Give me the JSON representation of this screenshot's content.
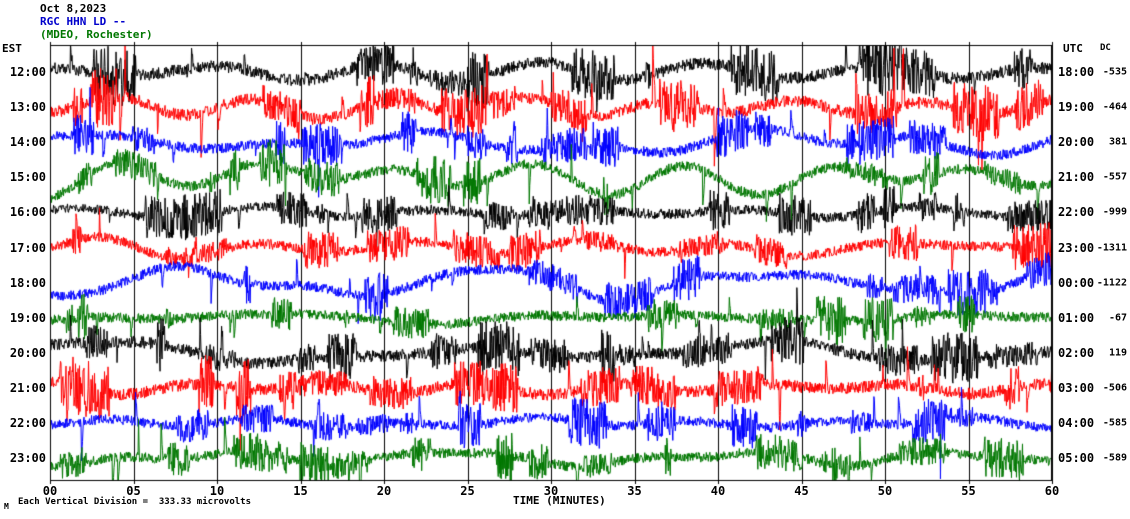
{
  "chart_data": {
    "type": "line",
    "subtype": "helicorder-seismogram",
    "title_lines": [
      "Oct 8,2023",
      "RGC HHN LD --",
      "(MDEO, Rochester)"
    ],
    "title_colors": [
      "#000000",
      "#0000cc",
      "#007700"
    ],
    "xlabel": "TIME (MINUTES)",
    "x_ticks": [
      "00",
      "05",
      "10",
      "15",
      "20",
      "25",
      "30",
      "35",
      "40",
      "45",
      "50",
      "55",
      "60"
    ],
    "x_range_minutes": [
      0,
      60
    ],
    "left_axis_label": "EST",
    "right_axis_label": "UTC",
    "dc_label": "DC",
    "footer": "Each Vertical Division =  333.33 microvolts",
    "corner_mark": "M",
    "grid": "vertical lines every 5 minutes",
    "legend_position": "none",
    "colors": {
      "black": "#000000",
      "red": "#ff0000",
      "blue": "#0000ff",
      "green": "#007700"
    },
    "rows": [
      {
        "est": "12:00",
        "utc": "18:00",
        "dc": "-535",
        "color": "black",
        "wander": 8,
        "noise": 6,
        "spikes": 20,
        "spike_amp": 30
      },
      {
        "est": "13:00",
        "utc": "19:00",
        "dc": "-464",
        "color": "red",
        "wander": 9,
        "noise": 6,
        "spikes": 24,
        "spike_amp": 55
      },
      {
        "est": "14:00",
        "utc": "20:00",
        "dc": "381",
        "color": "blue",
        "wander": 14,
        "noise": 5,
        "spikes": 14,
        "spike_amp": 35
      },
      {
        "est": "15:00",
        "utc": "21:00",
        "dc": "-557",
        "color": "green",
        "wander": 17,
        "noise": 5,
        "spikes": 12,
        "spike_amp": 40
      },
      {
        "est": "16:00",
        "utc": "22:00",
        "dc": "-999",
        "color": "black",
        "wander": 5,
        "noise": 5,
        "spikes": 12,
        "spike_amp": 25
      },
      {
        "est": "17:00",
        "utc": "23:00",
        "dc": "-1311",
        "color": "red",
        "wander": 11,
        "noise": 5,
        "spikes": 14,
        "spike_amp": 35
      },
      {
        "est": "18:00",
        "utc": "00:00",
        "dc": "-1122",
        "color": "blue",
        "wander": 15,
        "noise": 5,
        "spikes": 12,
        "spike_amp": 35
      },
      {
        "est": "19:00",
        "utc": "01:00",
        "dc": "-67",
        "color": "green",
        "wander": 5,
        "noise": 5,
        "spikes": 14,
        "spike_amp": 30
      },
      {
        "est": "20:00",
        "utc": "02:00",
        "dc": "119",
        "color": "black",
        "wander": 11,
        "noise": 6,
        "spikes": 16,
        "spike_amp": 40
      },
      {
        "est": "21:00",
        "utc": "03:00",
        "dc": "-506",
        "color": "red",
        "wander": 6,
        "noise": 6,
        "spikes": 18,
        "spike_amp": 40
      },
      {
        "est": "22:00",
        "utc": "04:00",
        "dc": "-585",
        "color": "blue",
        "wander": 5,
        "noise": 5,
        "spikes": 12,
        "spike_amp": 50
      },
      {
        "est": "23:00",
        "utc": "05:00",
        "dc": "-589",
        "color": "green",
        "wander": 9,
        "noise": 5,
        "spikes": 14,
        "spike_amp": 60
      }
    ]
  }
}
